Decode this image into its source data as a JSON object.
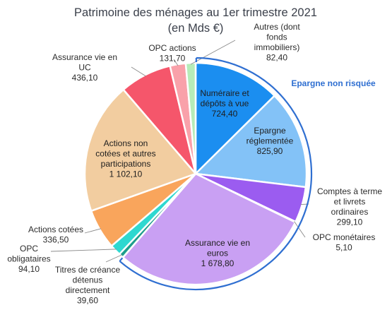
{
  "chart_data": {
    "type": "pie",
    "title_lines": [
      "Patrimoine des ménages au 1er trimestre 2021",
      "(en Mds €)"
    ],
    "bracket_label": "Epargne non risquée",
    "bracket_color": "#2f6fd1",
    "slices": [
      {
        "value": 724.4,
        "value_label": "724,40",
        "label_lines": [
          "Numéraire et",
          "dépôts à vue"
        ],
        "color": "#1b8ef0",
        "inside": true
      },
      {
        "value": 825.9,
        "value_label": "825,90",
        "label_lines": [
          "Epargne",
          "réglementée"
        ],
        "color": "#83c2f7",
        "inside": true
      },
      {
        "value": 299.1,
        "value_label": "299,10",
        "label_lines": [
          "Comptes à terme",
          "et livrets",
          "ordinaires"
        ],
        "color": "#9b5cf0",
        "inside": false
      },
      {
        "value": 5.1,
        "value_label": "5,10",
        "label_lines": [
          "OPC monétaires"
        ],
        "color": "#3e8c6e",
        "inside": false
      },
      {
        "value": 1678.8,
        "value_label": "1 678,80",
        "label_lines": [
          "Assurance vie en",
          "euros"
        ],
        "color": "#c9a0f3",
        "inside": true
      },
      {
        "value": 39.6,
        "value_label": "39,60",
        "label_lines": [
          "Titres de créance",
          "détenus",
          "directement"
        ],
        "color": "#1e9e8c",
        "inside": false
      },
      {
        "value": 94.1,
        "value_label": "94,10",
        "label_lines": [
          "OPC",
          "obligataires"
        ],
        "color": "#2ed8d0",
        "inside": false
      },
      {
        "value": 336.5,
        "value_label": "336,50",
        "label_lines": [
          "Actions cotées"
        ],
        "color": "#f9a55c",
        "inside": false
      },
      {
        "value": 1102.1,
        "value_label": "1 102,10",
        "label_lines": [
          "Actions non",
          "cotées et autres",
          "participations"
        ],
        "color": "#f2cda0",
        "inside": true
      },
      {
        "value": 436.1,
        "value_label": "436,10",
        "label_lines": [
          "Assurance vie en",
          "UC"
        ],
        "color": "#f5566b",
        "inside": false
      },
      {
        "value": 131.7,
        "value_label": "131,70",
        "label_lines": [
          "OPC actions"
        ],
        "color": "#f9a1aa",
        "inside": false
      },
      {
        "value": 82.4,
        "value_label": "82,40",
        "label_lines": [
          "Autres (dont",
          "fonds",
          "immobiliers)"
        ],
        "color": "#b6ecb8",
        "inside": false
      }
    ]
  }
}
